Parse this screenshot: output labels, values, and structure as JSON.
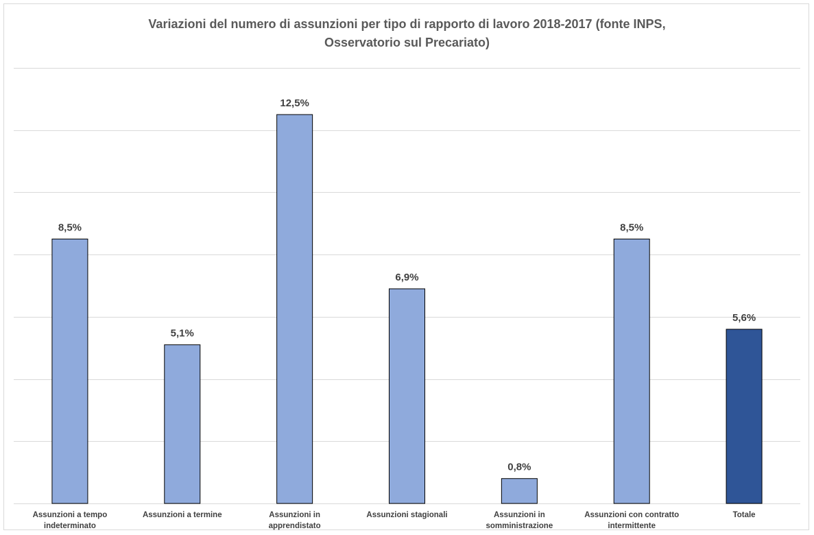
{
  "chart_data": {
    "type": "bar",
    "title": "Variazioni del numero di assunzioni per tipo di rapporto di lavoro 2018-2017 (fonte INPS, Osservatorio sul Precariato)",
    "title_lines": [
      "Variazioni del numero di assunzioni per tipo di rapporto di lavoro 2018-2017 (fonte INPS,",
      "Osservatorio sul Precariato)"
    ],
    "categories": [
      [
        "Assunzioni a tempo",
        "indeterminato"
      ],
      [
        "Assunzioni a termine"
      ],
      [
        "Assunzioni in",
        "apprendistato"
      ],
      [
        "Assunzioni stagionali"
      ],
      [
        "Assunzioni in",
        "somministrazione"
      ],
      [
        "Assunzioni con contratto",
        "intermittente"
      ],
      [
        "Totale"
      ]
    ],
    "values": [
      8.5,
      5.1,
      12.5,
      6.9,
      0.8,
      8.5,
      5.6
    ],
    "value_labels": [
      "8,5%",
      "5,1%",
      "12,5%",
      "6,9%",
      "0,8%",
      "8,5%",
      "5,6%"
    ],
    "xlabel": "",
    "ylabel": "",
    "ylim": [
      0,
      14
    ],
    "grid": true,
    "axis_tick_labels_visible": false,
    "colors": {
      "bar": "#8faadc",
      "bar_highlight": "#2f5597",
      "bar_edge": "#000000",
      "grid": "#d9d9d9",
      "text": "#404040",
      "title": "#595959"
    },
    "highlight_index": 6
  }
}
